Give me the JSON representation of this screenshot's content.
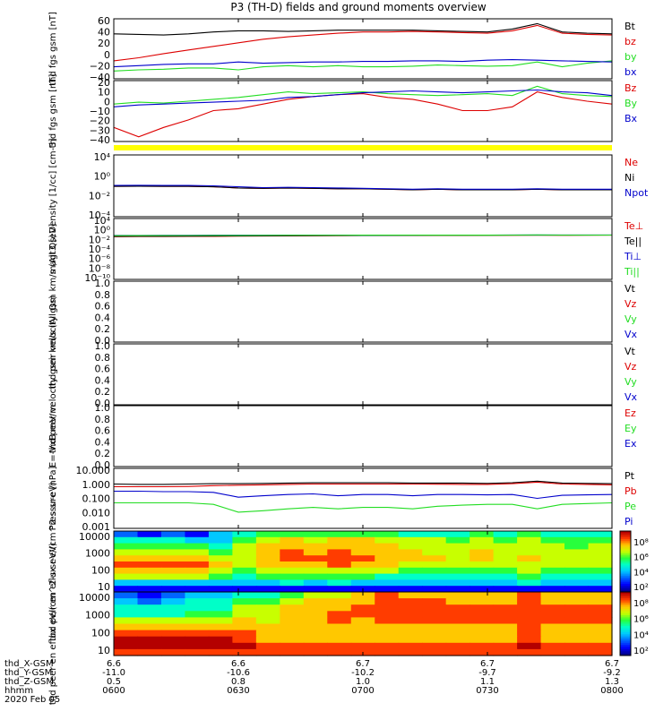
{
  "title": "P3 (TH-D) fields and ground moments overview",
  "time_axis": {
    "tick_labels": [
      "0600",
      "0630",
      "0700",
      "0730",
      "0800"
    ],
    "date": "2020 Feb 05",
    "row_names": [
      "thd_X-GSM",
      "thd_Y-GSM",
      "thd_Z-GSM",
      "hhmm"
    ],
    "rows": [
      [
        "6.6",
        "6.6",
        "6.7",
        "6.7",
        "6.7"
      ],
      [
        "-11.0",
        "-10.6",
        "-10.2",
        "-9.7",
        "-9.2"
      ],
      [
        "0.5",
        "0.8",
        "1.0",
        "1.1",
        "1.3"
      ]
    ]
  },
  "colors": {
    "black": "#000000",
    "red": "#dd0000",
    "green": "#22dd22",
    "blue": "#0000cc",
    "yellow": "#ffff00"
  },
  "chart_data": [
    {
      "type": "line",
      "ylabel": "thd fgs gsm [nT]",
      "ylim": [
        -40,
        60
      ],
      "yticks": [
        "60",
        "40",
        "20",
        "0",
        "−20",
        "−40"
      ],
      "series": [
        {
          "name": "Bt",
          "color": "black",
          "values": [
            35,
            34,
            33,
            35,
            38,
            40,
            40,
            39,
            40,
            41,
            41,
            41,
            41,
            40,
            39,
            38,
            43,
            52,
            38,
            36,
            35
          ]
        },
        {
          "name": "bz",
          "color": "red",
          "values": [
            -10,
            -5,
            2,
            8,
            14,
            20,
            26,
            30,
            33,
            36,
            38,
            38,
            39,
            38,
            37,
            36,
            40,
            49,
            36,
            34,
            33
          ]
        },
        {
          "name": "by",
          "color": "green",
          "values": [
            -27,
            -25,
            -24,
            -22,
            -22,
            -25,
            -20,
            -18,
            -20,
            -18,
            -20,
            -20,
            -19,
            -17,
            -18,
            -19,
            -18,
            -12,
            -20,
            -14,
            -10
          ]
        },
        {
          "name": "bx",
          "color": "blue",
          "values": [
            -20,
            -18,
            -16,
            -15,
            -15,
            -12,
            -14,
            -13,
            -12,
            -12,
            -11,
            -11,
            -10,
            -10,
            -11,
            -9,
            -8,
            -9,
            -10,
            -11,
            -12
          ]
        }
      ]
    },
    {
      "type": "line",
      "ylabel": "thd fgs gsm [nT]",
      "ylim": [
        -45,
        20
      ],
      "yticks": [
        "20",
        "10",
        "0",
        "−10",
        "−20",
        "−30",
        "−40"
      ],
      "series": [
        {
          "name": "Bz",
          "color": "red",
          "values": [
            -30,
            -40,
            -30,
            -22,
            -12,
            -10,
            -5,
            0,
            3,
            5,
            6,
            2,
            0,
            -5,
            -12,
            -12,
            -8,
            8,
            2,
            -2,
            -5
          ]
        },
        {
          "name": "By",
          "color": "green",
          "values": [
            -5,
            -3,
            -4,
            -2,
            0,
            2,
            5,
            8,
            6,
            7,
            8,
            6,
            5,
            4,
            5,
            6,
            4,
            14,
            6,
            4,
            3
          ]
        },
        {
          "name": "Bx",
          "color": "blue",
          "values": [
            -8,
            -6,
            -5,
            -4,
            -3,
            -2,
            -1,
            2,
            3,
            5,
            7,
            8,
            9,
            8,
            7,
            8,
            9,
            10,
            8,
            7,
            4
          ]
        }
      ]
    },
    {
      "type": "line",
      "ylabel": "Density [1/cc] [cm-3]",
      "log_range": [
        -4,
        4.5
      ],
      "yticks": [
        "10⁴",
        "10⁰",
        "10⁻²",
        "10⁻⁴"
      ],
      "series": [
        {
          "name": "Ne",
          "color": "red",
          "values": [
            1.5,
            1.6,
            1.5,
            1.5,
            1.3,
            0.9,
            0.8,
            0.9,
            0.8,
            0.7,
            0.7,
            0.6,
            0.5,
            0.6,
            0.5,
            0.5,
            0.5,
            0.6,
            0.5,
            0.5,
            0.5
          ]
        },
        {
          "name": "Ni",
          "color": "black",
          "values": [
            1.5,
            1.6,
            1.5,
            1.5,
            1.3,
            0.9,
            0.8,
            0.9,
            0.8,
            0.7,
            0.7,
            0.6,
            0.5,
            0.6,
            0.5,
            0.5,
            0.5,
            0.6,
            0.5,
            0.5,
            0.5
          ]
        },
        {
          "name": "Npot",
          "color": "blue",
          "values": [
            2.0,
            2.1,
            2.0,
            2.0,
            1.8,
            1.3,
            1.0,
            1.1,
            1.0,
            0.9,
            0.8,
            0.7,
            0.6,
            0.7,
            0.6,
            0.6,
            0.6,
            0.7,
            0.6,
            0.6,
            0.6
          ]
        }
      ]
    },
    {
      "type": "line",
      "ylabel": "magt3 [eV]",
      "log_range": [
        -10,
        4.5
      ],
      "yticks": [
        "10⁴",
        "10⁰",
        "10⁻²",
        "10⁻⁴",
        "10⁻⁶",
        "10⁻⁸",
        "10⁻¹⁰"
      ],
      "series": [
        {
          "name": "Te⊥",
          "color": "red",
          "values": [
            1.5,
            1.6,
            1.6,
            1.7,
            1.8,
            2.0,
            2.1,
            2.3,
            2.4,
            2.5,
            2.8,
            3.0,
            3.0,
            3.1,
            3.1,
            3.2,
            3.3,
            3.4,
            3.3,
            3.4,
            3.5
          ]
        },
        {
          "name": "Te||",
          "color": "black",
          "values": [
            1.8,
            1.9,
            1.9,
            2.0,
            2.1,
            2.3,
            2.4,
            2.6,
            2.7,
            2.8,
            3.0,
            3.1,
            3.2,
            3.2,
            3.3,
            3.3,
            3.4,
            3.5,
            3.4,
            3.5,
            3.6
          ]
        },
        {
          "name": "Ti⊥",
          "color": "blue",
          "values": [
            3.0,
            3.0,
            3.1,
            3.1,
            3.2,
            3.3,
            3.3,
            3.4,
            3.4,
            3.4,
            3.5,
            3.5,
            3.5,
            3.6,
            3.6,
            3.6,
            3.7,
            3.8,
            3.7,
            3.7,
            3.7
          ]
        },
        {
          "name": "Ti||",
          "color": "green",
          "values": [
            2.6,
            2.7,
            2.7,
            2.8,
            2.9,
            3.0,
            3.1,
            3.2,
            3.2,
            3.3,
            3.4,
            3.4,
            3.4,
            3.5,
            3.5,
            3.5,
            3.6,
            3.9,
            3.6,
            3.6,
            3.6
          ]
        }
      ]
    },
    {
      "type": "line",
      "ylabel": "thd peir velocity gsm km/s (All Qs)",
      "ylim": [
        0,
        1
      ],
      "yticks": [
        "1.0",
        "0.8",
        "0.6",
        "0.4",
        "0.2",
        "0.0"
      ],
      "series": [
        {
          "name": "Vt",
          "color": "black",
          "values": []
        },
        {
          "name": "Vz",
          "color": "red",
          "values": []
        },
        {
          "name": "Vy",
          "color": "green",
          "values": []
        },
        {
          "name": "Vx",
          "color": "blue",
          "values": []
        }
      ]
    },
    {
      "type": "line",
      "ylabel": "thd peer velocity gsm km/s (All Qs)",
      "ylim": [
        0,
        1
      ],
      "yticks": [
        "1.0",
        "0.8",
        "0.6",
        "0.4",
        "0.2",
        "0.0"
      ],
      "series": [
        {
          "name": "Vt",
          "color": "black",
          "values": []
        },
        {
          "name": "Vz",
          "color": "red",
          "values": []
        },
        {
          "name": "Vy",
          "color": "green",
          "values": []
        },
        {
          "name": "Vx",
          "color": "blue",
          "values": []
        }
      ]
    },
    {
      "type": "line",
      "ylabel": "E=-VxB mV/m",
      "ylim": [
        0,
        1
      ],
      "yticks": [
        "1.0",
        "0.8",
        "0.6",
        "0.4",
        "0.2",
        "0.0"
      ],
      "series": [
        {
          "name": "Ez",
          "color": "red",
          "values": []
        },
        {
          "name": "Ey",
          "color": "green",
          "values": []
        },
        {
          "name": "Ex",
          "color": "blue",
          "values": []
        }
      ]
    },
    {
      "type": "line",
      "ylabel": "Pressure [nPa]",
      "log_range": [
        -3,
        1
      ],
      "yticks": [
        "10.000",
        "1.000",
        "0.100",
        "0.010",
        "0.001"
      ],
      "series": [
        {
          "name": "Pt",
          "color": "black",
          "values": [
            0.9,
            0.85,
            0.85,
            0.9,
            0.95,
            0.95,
            1.0,
            1.05,
            1.1,
            1.1,
            1.1,
            1.1,
            1.05,
            1.05,
            1.05,
            1.0,
            1.1,
            1.4,
            1.05,
            1.0,
            0.95
          ]
        },
        {
          "name": "Pb",
          "color": "red",
          "values": [
            0.6,
            0.6,
            0.6,
            0.62,
            0.7,
            0.75,
            0.8,
            0.85,
            0.9,
            0.9,
            0.9,
            0.9,
            0.9,
            0.88,
            0.85,
            0.85,
            0.95,
            1.2,
            0.9,
            0.85,
            0.8
          ]
        },
        {
          "name": "Pe",
          "color": "green",
          "values": [
            0.05,
            0.05,
            0.05,
            0.05,
            0.04,
            0.012,
            0.015,
            0.02,
            0.025,
            0.02,
            0.025,
            0.025,
            0.02,
            0.03,
            0.035,
            0.04,
            0.04,
            0.02,
            0.04,
            0.045,
            0.05
          ]
        },
        {
          "name": "Pi",
          "color": "blue",
          "values": [
            0.3,
            0.3,
            0.28,
            0.28,
            0.25,
            0.12,
            0.15,
            0.18,
            0.2,
            0.15,
            0.18,
            0.18,
            0.15,
            0.18,
            0.18,
            0.17,
            0.18,
            0.1,
            0.16,
            0.17,
            0.18
          ]
        }
      ]
    },
    {
      "type": "heatmap",
      "ylabel": "thd peir en eflux eV/(cm^2-s-sr-eV)",
      "log_range": [
        0.85,
        4.2
      ],
      "yticks": [
        "10000",
        "1000",
        "100",
        "10"
      ],
      "colorbar_ticks": [
        "10⁸",
        "10⁶",
        "10⁴",
        "10²"
      ],
      "rows": [
        [
          2,
          1,
          2,
          1,
          3,
          4,
          5,
          5,
          5,
          5,
          5,
          5,
          4,
          4,
          4,
          5,
          4,
          5,
          4,
          4,
          4
        ],
        [
          4,
          4,
          4,
          3,
          3,
          5,
          6,
          7,
          6,
          7,
          7,
          6,
          6,
          6,
          5,
          6,
          5,
          6,
          5,
          5,
          5
        ],
        [
          5,
          5,
          5,
          5,
          4,
          6,
          7,
          7,
          7,
          7,
          7,
          7,
          6,
          6,
          6,
          6,
          6,
          6,
          6,
          5,
          6
        ],
        [
          6,
          6,
          6,
          6,
          5,
          6,
          7,
          8,
          7,
          8,
          7,
          7,
          7,
          6,
          6,
          7,
          6,
          6,
          6,
          6,
          6
        ],
        [
          7,
          7,
          7,
          7,
          6,
          6,
          7,
          8,
          8,
          8,
          8,
          7,
          7,
          7,
          6,
          7,
          6,
          7,
          6,
          6,
          6
        ],
        [
          8,
          8,
          8,
          8,
          7,
          6,
          7,
          7,
          7,
          8,
          7,
          7,
          6,
          6,
          6,
          6,
          6,
          6,
          6,
          6,
          6
        ],
        [
          7,
          7,
          7,
          7,
          6,
          5,
          6,
          6,
          6,
          6,
          6,
          6,
          5,
          5,
          5,
          5,
          5,
          6,
          5,
          5,
          5
        ],
        [
          6,
          6,
          6,
          6,
          5,
          4,
          5,
          5,
          5,
          5,
          5,
          4,
          4,
          4,
          4,
          4,
          4,
          5,
          4,
          4,
          4
        ],
        [
          3,
          3,
          3,
          3,
          3,
          3,
          3,
          4,
          3,
          4,
          3,
          3,
          3,
          3,
          3,
          3,
          3,
          4,
          3,
          3,
          3
        ],
        [
          1,
          1,
          1,
          1,
          1,
          1,
          1,
          1,
          1,
          1,
          1,
          1,
          1,
          1,
          1,
          1,
          1,
          1,
          1,
          1,
          1
        ]
      ]
    },
    {
      "type": "heatmap",
      "ylabel": "thd peer en eflux eV/(cm^2-s-sr-eV)",
      "log_range": [
        0.85,
        4.4
      ],
      "yticks": [
        "10000",
        "1000",
        "100",
        "10"
      ],
      "colorbar_ticks": [
        "10⁸",
        "10⁶",
        "10⁴",
        "10²"
      ],
      "rows": [
        [
          2,
          1,
          2,
          3,
          3,
          4,
          4,
          5,
          6,
          6,
          7,
          8,
          7,
          7,
          7,
          7,
          7,
          8,
          7,
          7,
          7
        ],
        [
          3,
          2,
          3,
          4,
          4,
          5,
          5,
          6,
          7,
          7,
          7,
          8,
          8,
          8,
          7,
          7,
          7,
          8,
          7,
          7,
          7
        ],
        [
          4,
          4,
          4,
          4,
          4,
          6,
          6,
          7,
          7,
          7,
          8,
          8,
          8,
          8,
          8,
          8,
          8,
          8,
          8,
          8,
          8
        ],
        [
          4,
          4,
          4,
          5,
          5,
          6,
          6,
          7,
          7,
          8,
          8,
          8,
          8,
          8,
          8,
          8,
          8,
          8,
          8,
          8,
          8
        ],
        [
          6,
          6,
          6,
          6,
          6,
          7,
          6,
          7,
          7,
          8,
          7,
          8,
          8,
          8,
          8,
          8,
          8,
          8,
          8,
          8,
          8
        ],
        [
          7,
          7,
          7,
          7,
          7,
          7,
          7,
          7,
          7,
          7,
          7,
          7,
          7,
          7,
          7,
          7,
          7,
          8,
          7,
          7,
          7
        ],
        [
          8,
          8,
          8,
          8,
          8,
          8,
          7,
          7,
          7,
          7,
          7,
          7,
          7,
          7,
          7,
          7,
          7,
          8,
          7,
          7,
          7
        ],
        [
          9,
          9,
          9,
          9,
          9,
          8,
          7,
          7,
          7,
          7,
          7,
          7,
          7,
          7,
          7,
          7,
          7,
          8,
          7,
          7,
          7
        ],
        [
          9,
          9,
          9,
          9,
          9,
          9,
          8,
          8,
          8,
          8,
          8,
          8,
          8,
          8,
          8,
          8,
          8,
          9,
          8,
          8,
          8
        ],
        [
          8,
          8,
          8,
          8,
          8,
          8,
          8,
          8,
          8,
          8,
          8,
          8,
          8,
          8,
          8,
          8,
          8,
          8,
          8,
          8,
          8
        ]
      ]
    }
  ]
}
